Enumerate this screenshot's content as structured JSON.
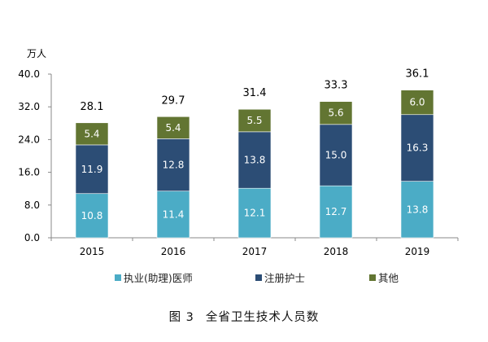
{
  "chart_data": {
    "type": "bar",
    "stacked": true,
    "title": "全省卫生技术人员数",
    "figure_label": "图 3",
    "ylabel": "万人",
    "xlabel": "",
    "ylim": [
      0,
      40
    ],
    "yticks": [
      "0.0",
      "8.0",
      "16.0",
      "24.0",
      "32.0",
      "40.0"
    ],
    "ytick_values": [
      0,
      8,
      16,
      24,
      32,
      40
    ],
    "categories": [
      "2015",
      "2016",
      "2017",
      "2018",
      "2019"
    ],
    "series": [
      {
        "name": "执业(助理)医师",
        "color": "#4BACC6",
        "values": [
          10.8,
          11.4,
          12.1,
          12.7,
          13.8
        ]
      },
      {
        "name": "注册护士",
        "color": "#2C4D75",
        "values": [
          11.9,
          12.8,
          13.8,
          15.0,
          16.3
        ]
      },
      {
        "name": "其他",
        "color": "#627532",
        "values": [
          5.4,
          5.4,
          5.5,
          5.6,
          6.0
        ]
      }
    ],
    "totals": [
      "28.1",
      "29.7",
      "31.4",
      "33.3",
      "36.1"
    ],
    "legend_position": "bottom",
    "grid": false
  }
}
